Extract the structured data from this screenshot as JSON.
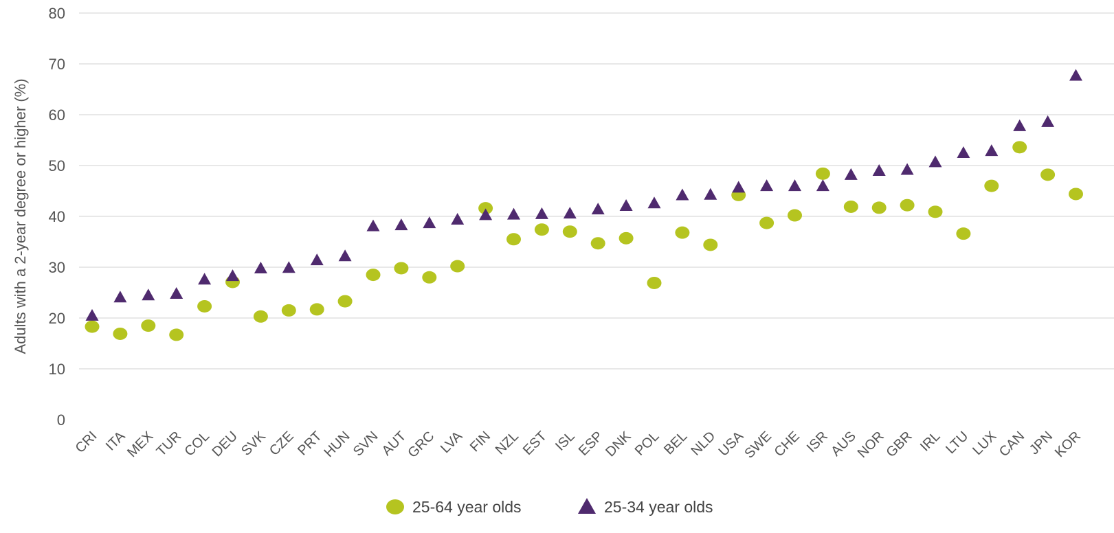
{
  "chart_data": {
    "type": "scatter",
    "title": "",
    "xlabel": "",
    "ylabel": "Adults with a 2-year degree or higher (%)",
    "ylim": [
      0,
      80
    ],
    "yticks": [
      0,
      10,
      20,
      30,
      40,
      50,
      60,
      70,
      80
    ],
    "grid": true,
    "legend_position": "bottom",
    "categories": [
      "CRI",
      "ITA",
      "MEX",
      "TUR",
      "COL",
      "DEU",
      "SVK",
      "CZE",
      "PRT",
      "HUN",
      "SVN",
      "AUT",
      "GRC",
      "LVA",
      "FIN",
      "NZL",
      "EST",
      "ISL",
      "ESP",
      "DNK",
      "POL",
      "BEL",
      "NLD",
      "USA",
      "SWE",
      "CHE",
      "ISR",
      "AUS",
      "NOR",
      "GBR",
      "IRL",
      "LTU",
      "LUX",
      "CAN",
      "JPN",
      "KOR"
    ],
    "series": [
      {
        "name": "25-64 year olds",
        "marker": "circle",
        "color": "#b5c420",
        "values": [
          18.3,
          16.9,
          18.5,
          16.7,
          22.3,
          27.1,
          20.3,
          21.5,
          21.7,
          23.3,
          28.5,
          29.8,
          28.0,
          30.2,
          41.6,
          35.5,
          37.4,
          37.0,
          34.7,
          35.7,
          26.9,
          36.8,
          34.4,
          44.2,
          38.7,
          40.2,
          48.4,
          41.9,
          41.7,
          42.2,
          40.9,
          36.6,
          46.0,
          53.6,
          48.2,
          44.4
        ]
      },
      {
        "name": "25-34 year olds",
        "marker": "triangle",
        "color": "#4f2a6e",
        "values": [
          20.4,
          24.0,
          24.4,
          24.7,
          27.5,
          28.2,
          29.7,
          29.8,
          31.3,
          32.1,
          38.0,
          38.2,
          38.6,
          39.3,
          40.2,
          40.3,
          40.4,
          40.5,
          41.3,
          42.0,
          42.5,
          44.1,
          44.2,
          45.6,
          45.9,
          45.9,
          45.9,
          48.1,
          48.9,
          49.1,
          50.6,
          52.4,
          52.8,
          57.7,
          58.5,
          67.6
        ]
      }
    ]
  }
}
